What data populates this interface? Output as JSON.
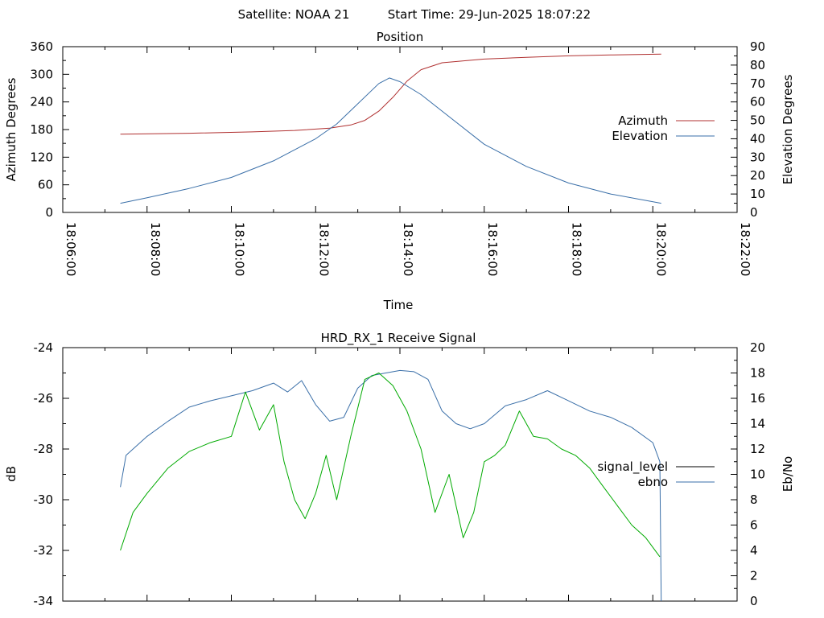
{
  "header": {
    "satellite": "Satellite: NOAA 21",
    "start_time": "Start Time: 29-Jun-2025 18:07:22"
  },
  "chart_data": [
    {
      "type": "line",
      "title": "Position",
      "xlabel": "Time",
      "ylabel": "Azimuth Degrees",
      "y2label": "Elevation Degrees",
      "x_unit": "time of day",
      "xlim": [
        "18:06:00",
        "18:22:00"
      ],
      "x_ticks": [
        "18:06:00",
        "18:08:00",
        "18:10:00",
        "18:12:00",
        "18:14:00",
        "18:16:00",
        "18:18:00",
        "18:20:00",
        "18:22:00"
      ],
      "ylim": [
        0,
        360
      ],
      "y_ticks": [
        0,
        60,
        120,
        180,
        240,
        300,
        360
      ],
      "y2lim": [
        0,
        90
      ],
      "y2_ticks": [
        0,
        10,
        20,
        30,
        40,
        50,
        60,
        70,
        80,
        90
      ],
      "legend_position": "right",
      "series": [
        {
          "name": "Azimuth",
          "axis": "left",
          "color": "#b03030",
          "x": [
            "18:07:22",
            "18:09:00",
            "18:10:30",
            "18:11:30",
            "18:12:20",
            "18:12:50",
            "18:13:10",
            "18:13:30",
            "18:13:50",
            "18:14:10",
            "18:14:30",
            "18:15:00",
            "18:16:00",
            "18:17:00",
            "18:18:00",
            "18:19:00",
            "18:20:12"
          ],
          "values": [
            170,
            172,
            175,
            178,
            183,
            190,
            200,
            220,
            250,
            285,
            310,
            325,
            333,
            337,
            340,
            342,
            344
          ]
        },
        {
          "name": "Elevation",
          "axis": "right",
          "color": "#3a6fa8",
          "x": [
            "18:07:22",
            "18:08:00",
            "18:09:00",
            "18:10:00",
            "18:11:00",
            "18:12:00",
            "18:12:30",
            "18:13:00",
            "18:13:30",
            "18:13:45",
            "18:14:00",
            "18:14:30",
            "18:15:00",
            "18:16:00",
            "18:17:00",
            "18:18:00",
            "18:19:00",
            "18:20:12"
          ],
          "values": [
            5,
            8,
            13,
            19,
            28,
            40,
            48,
            59,
            70,
            73,
            71,
            64,
            55,
            37,
            25,
            16,
            10,
            5
          ]
        }
      ]
    },
    {
      "type": "line",
      "title": "HRD_RX_1 Receive Signal",
      "xlabel": "",
      "ylabel": "dB",
      "y2label": "Eb/No",
      "x_unit": "time of day",
      "xlim": [
        "18:06:00",
        "18:22:00"
      ],
      "ylim": [
        -34,
        -24
      ],
      "y_ticks": [
        -34,
        -32,
        -30,
        -28,
        -26,
        -24
      ],
      "y2lim": [
        0,
        20
      ],
      "y2_ticks": [
        0,
        2,
        4,
        6,
        8,
        10,
        12,
        14,
        16,
        18,
        20
      ],
      "legend_position": "right",
      "series": [
        {
          "name": "signal_level",
          "axis": "left",
          "color": "#000000",
          "x": [],
          "values": []
        },
        {
          "name": "ebno",
          "axis": "right",
          "color": "#3a6fa8",
          "x": [
            "18:07:22",
            "18:07:30",
            "18:08:00",
            "18:08:30",
            "18:09:00",
            "18:09:30",
            "18:10:00",
            "18:10:30",
            "18:11:00",
            "18:11:20",
            "18:11:40",
            "18:12:00",
            "18:12:20",
            "18:12:40",
            "18:13:00",
            "18:13:20",
            "18:13:40",
            "18:14:00",
            "18:14:20",
            "18:14:40",
            "18:15:00",
            "18:15:20",
            "18:15:40",
            "18:16:00",
            "18:16:30",
            "18:17:00",
            "18:17:30",
            "18:18:00",
            "18:18:30",
            "18:19:00",
            "18:19:30",
            "18:20:00",
            "18:20:10",
            "18:20:12"
          ],
          "values": [
            9,
            11.5,
            13,
            14.2,
            15.3,
            15.8,
            16.2,
            16.6,
            17.2,
            16.5,
            17.4,
            15.5,
            14.2,
            14.5,
            16.8,
            17.8,
            18.0,
            18.2,
            18.1,
            17.5,
            15.0,
            14.0,
            13.6,
            14.0,
            15.4,
            15.9,
            16.6,
            15.8,
            15.0,
            14.5,
            13.7,
            12.5,
            11.0,
            0
          ]
        },
        {
          "name": "",
          "axis": "right",
          "color": "#00aa00",
          "x": [
            "18:07:22",
            "18:07:40",
            "18:08:00",
            "18:08:30",
            "18:09:00",
            "18:09:30",
            "18:10:00",
            "18:10:20",
            "18:10:40",
            "18:11:00",
            "18:11:15",
            "18:11:30",
            "18:11:45",
            "18:12:00",
            "18:12:15",
            "18:12:30",
            "18:12:50",
            "18:13:10",
            "18:13:30",
            "18:13:50",
            "18:14:10",
            "18:14:30",
            "18:14:50",
            "18:15:10",
            "18:15:30",
            "18:15:45",
            "18:16:00",
            "18:16:15",
            "18:16:30",
            "18:16:50",
            "18:17:10",
            "18:17:30",
            "18:17:50",
            "18:18:10",
            "18:18:30",
            "18:18:50",
            "18:19:10",
            "18:19:30",
            "18:19:50",
            "18:20:10"
          ],
          "values": [
            4,
            7,
            8.5,
            10.5,
            11.8,
            12.5,
            13,
            16.5,
            13.5,
            15.5,
            11,
            8,
            6.5,
            8.5,
            11.5,
            8,
            13,
            17.5,
            18,
            17,
            15,
            12,
            7,
            10,
            5,
            7,
            11,
            11.5,
            12.3,
            15,
            13,
            12.8,
            12,
            11.5,
            10.5,
            9,
            7.5,
            6,
            5,
            3.5
          ]
        }
      ]
    }
  ]
}
